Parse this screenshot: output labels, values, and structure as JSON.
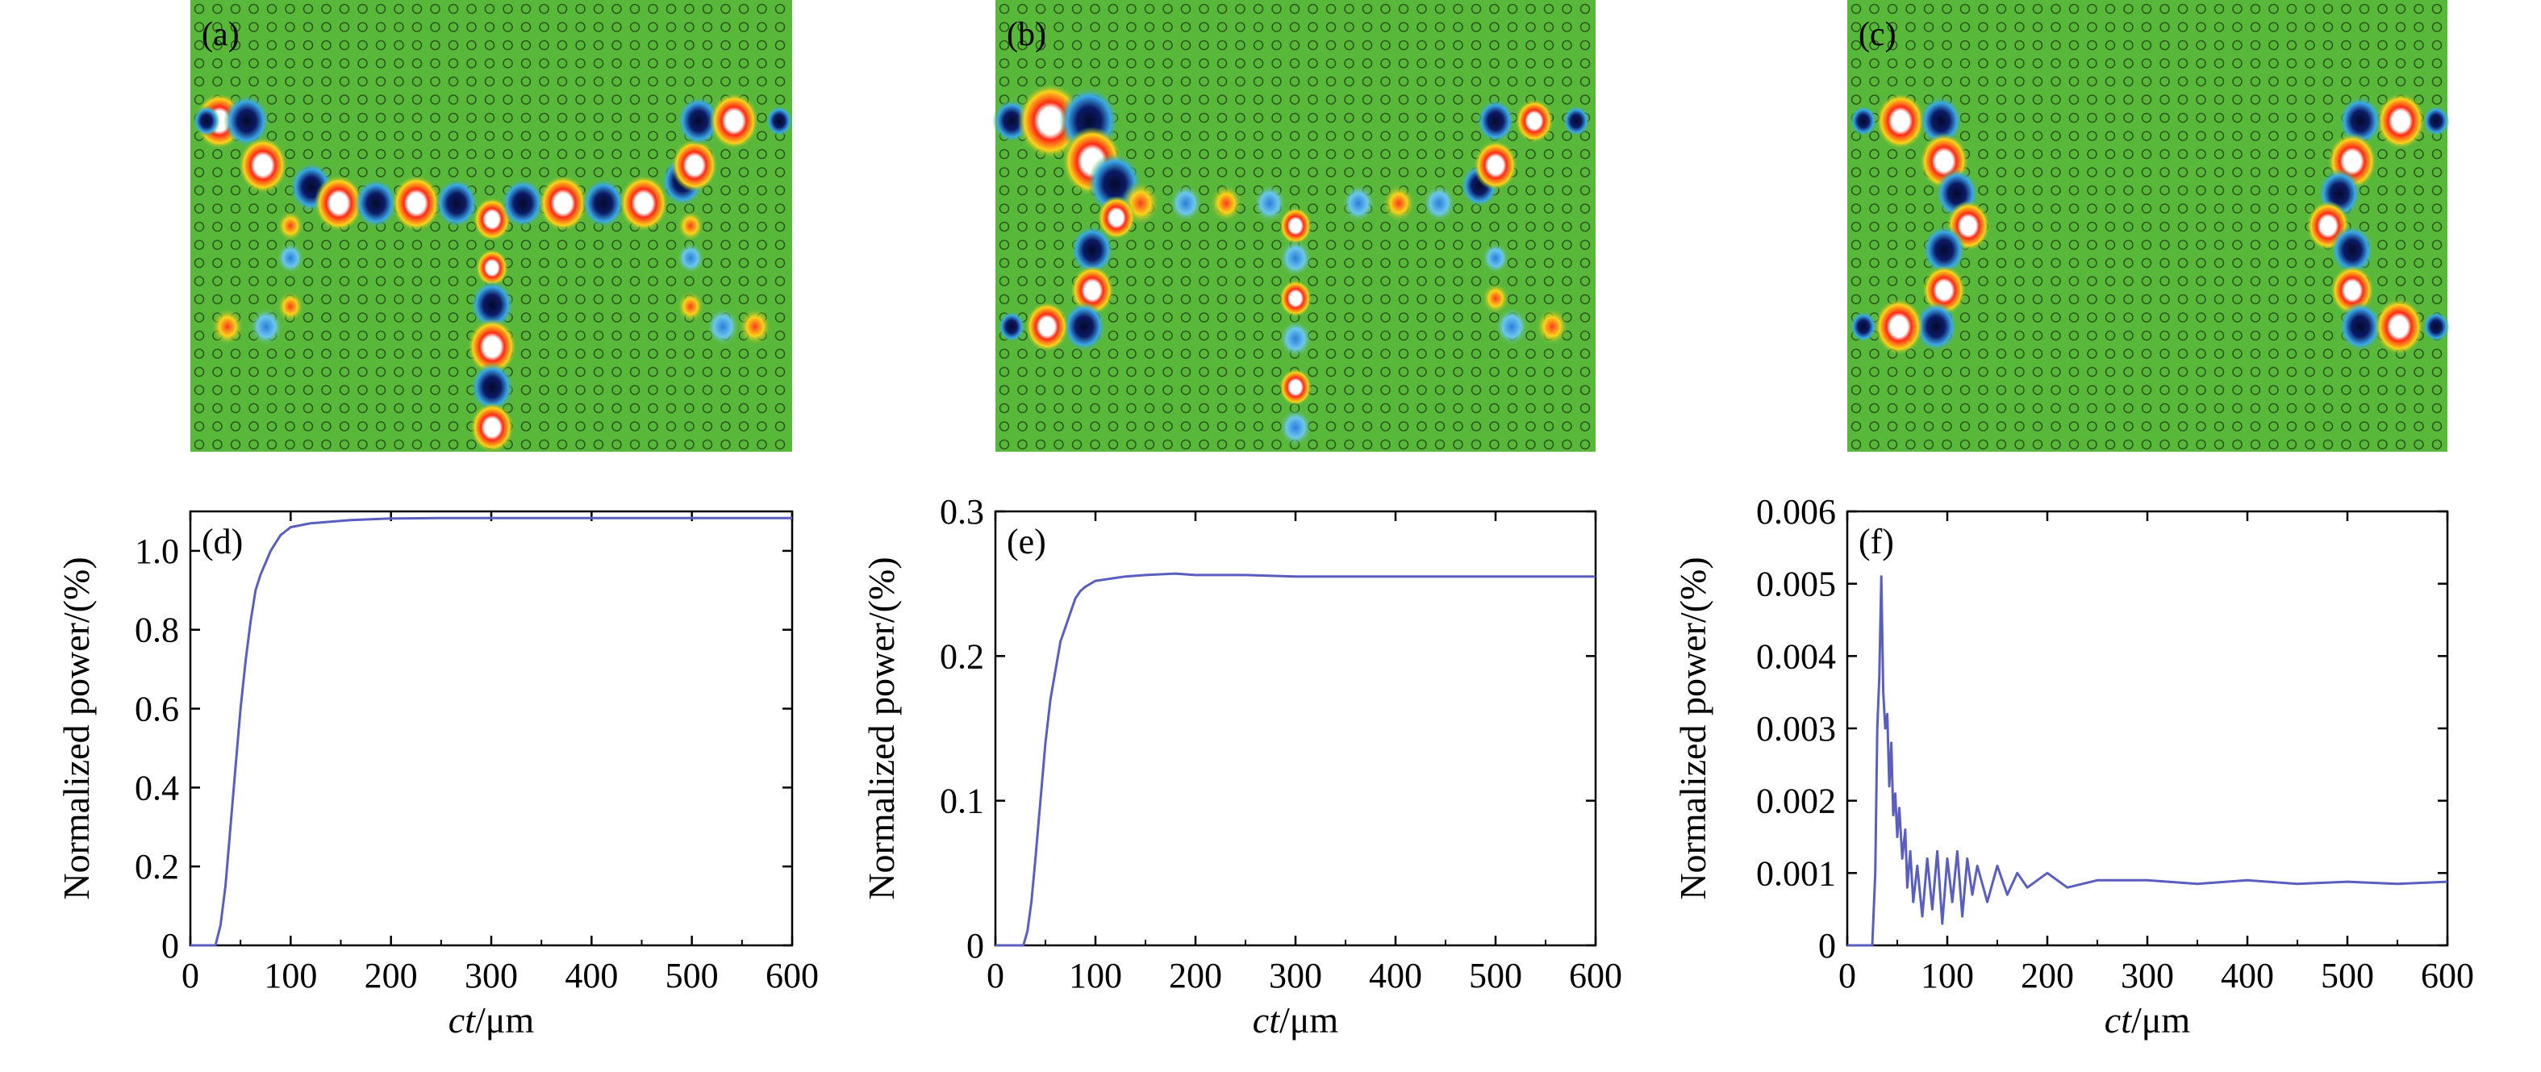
{
  "figure": {
    "panel_labels": [
      "(a)",
      "(b)",
      "(c)",
      "(d)",
      "(e)",
      "(f)"
    ]
  },
  "colors": {
    "background_field": "#58b83a",
    "rod_ring": "#1f3a14",
    "positive_peak": "#ff2a16",
    "positive_mid": "#ffd21a",
    "negative_peak": "#0b1a66",
    "negative_mid": "#3aa8e8",
    "curve": "#5a5fbf"
  },
  "field_maps": [
    {
      "label": "(a)",
      "title": "",
      "waveguide": "T-junction with all three outputs active"
    },
    {
      "label": "(b)",
      "title": "",
      "waveguide": "T-junction with vertical arm active"
    },
    {
      "label": "(c)",
      "title": "",
      "waveguide": "two separated S-bends"
    }
  ],
  "chart_data": [
    {
      "type": "line",
      "label": "(d)",
      "title": "",
      "xlabel_italic": "ct",
      "xlabel_rest": "/μm",
      "ylabel": "Normalized power/(%)",
      "xlim": [
        0,
        600
      ],
      "ylim": [
        0,
        1.1
      ],
      "xticks": [
        0,
        100,
        200,
        300,
        400,
        500,
        600
      ],
      "yticks": [
        0,
        0.2,
        0.4,
        0.6,
        0.8,
        1.0
      ],
      "ytick_labels": [
        "0",
        "0.2",
        "0.4",
        "0.6",
        "0.8",
        "1.0"
      ],
      "series": [
        {
          "x": [
            0,
            25,
            30,
            35,
            40,
            45,
            50,
            55,
            60,
            65,
            70,
            75,
            80,
            85,
            90,
            95,
            100,
            110,
            120,
            130,
            140,
            150,
            160,
            180,
            200,
            250,
            300,
            400,
            500,
            600
          ],
          "y": [
            0,
            0,
            0.05,
            0.15,
            0.3,
            0.45,
            0.6,
            0.72,
            0.82,
            0.9,
            0.94,
            0.97,
            1.0,
            1.02,
            1.04,
            1.05,
            1.06,
            1.065,
            1.07,
            1.072,
            1.074,
            1.076,
            1.078,
            1.08,
            1.082,
            1.083,
            1.083,
            1.083,
            1.083,
            1.083
          ]
        }
      ]
    },
    {
      "type": "line",
      "label": "(e)",
      "title": "",
      "xlabel_italic": "ct",
      "xlabel_rest": "/μm",
      "ylabel": "Normalized power/(%)",
      "xlim": [
        0,
        600
      ],
      "ylim": [
        0,
        0.3
      ],
      "xticks": [
        0,
        100,
        200,
        300,
        400,
        500,
        600
      ],
      "yticks": [
        0,
        0.1,
        0.2,
        0.3
      ],
      "ytick_labels": [
        "0",
        "0.1",
        "0.2",
        "0.3"
      ],
      "series": [
        {
          "x": [
            0,
            28,
            32,
            36,
            40,
            45,
            50,
            55,
            60,
            65,
            70,
            75,
            80,
            85,
            90,
            95,
            100,
            110,
            120,
            130,
            150,
            180,
            200,
            250,
            300,
            400,
            500,
            600
          ],
          "y": [
            0,
            0,
            0.01,
            0.03,
            0.06,
            0.1,
            0.14,
            0.17,
            0.19,
            0.21,
            0.22,
            0.23,
            0.24,
            0.245,
            0.248,
            0.25,
            0.252,
            0.253,
            0.254,
            0.255,
            0.256,
            0.257,
            0.256,
            0.256,
            0.255,
            0.255,
            0.255,
            0.255
          ]
        }
      ]
    },
    {
      "type": "line",
      "label": "(f)",
      "title": "",
      "xlabel_italic": "ct",
      "xlabel_rest": "/μm",
      "ylabel": "Normalized power/(%)",
      "xlim": [
        0,
        600
      ],
      "ylim": [
        0,
        0.006
      ],
      "xticks": [
        0,
        100,
        200,
        300,
        400,
        500,
        600
      ],
      "yticks": [
        0,
        0.001,
        0.002,
        0.003,
        0.004,
        0.005,
        0.006
      ],
      "ytick_labels": [
        "0",
        "0.001",
        "0.002",
        "0.003",
        "0.004",
        "0.005",
        "0.006"
      ],
      "series": [
        {
          "x": [
            0,
            25,
            28,
            30,
            32,
            34,
            36,
            38,
            40,
            42,
            44,
            46,
            48,
            50,
            52,
            55,
            58,
            60,
            63,
            66,
            70,
            75,
            80,
            85,
            90,
            95,
            100,
            105,
            110,
            115,
            120,
            125,
            130,
            140,
            150,
            160,
            170,
            180,
            200,
            220,
            250,
            300,
            350,
            400,
            450,
            500,
            550,
            600
          ],
          "y": [
            0,
            0,
            0.001,
            0.003,
            0.0037,
            0.0051,
            0.0035,
            0.003,
            0.0032,
            0.0022,
            0.0028,
            0.0018,
            0.0021,
            0.0015,
            0.0019,
            0.0012,
            0.0016,
            0.0008,
            0.0013,
            0.0006,
            0.0011,
            0.0004,
            0.0012,
            0.0005,
            0.0013,
            0.0003,
            0.0012,
            0.0006,
            0.0013,
            0.0004,
            0.0012,
            0.0007,
            0.0011,
            0.0006,
            0.0011,
            0.0007,
            0.001,
            0.0008,
            0.001,
            0.0008,
            0.0009,
            0.0009,
            0.00085,
            0.0009,
            0.00085,
            0.00088,
            0.00085,
            0.00088
          ]
        }
      ]
    }
  ]
}
